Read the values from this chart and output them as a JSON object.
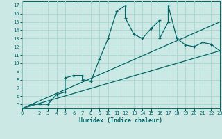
{
  "title": "",
  "xlabel": "Humidex (Indice chaleur)",
  "bg_color": "#cce8e4",
  "grid_color": "#a8d8d0",
  "line_color": "#006666",
  "xlim": [
    0,
    23
  ],
  "ylim": [
    4.5,
    17.5
  ],
  "xticks": [
    0,
    2,
    3,
    4,
    5,
    6,
    7,
    8,
    9,
    10,
    11,
    12,
    13,
    14,
    15,
    16,
    17,
    18,
    19,
    20,
    21,
    22,
    23
  ],
  "yticks": [
    5,
    6,
    7,
    8,
    9,
    10,
    11,
    12,
    13,
    14,
    15,
    16,
    17
  ],
  "data_line": [
    [
      1,
      5
    ],
    [
      2,
      5.0
    ],
    [
      3,
      5.0
    ],
    [
      4,
      6.2
    ],
    [
      5,
      6.5
    ],
    [
      5,
      8.2
    ],
    [
      6,
      8.5
    ],
    [
      6,
      8.5
    ],
    [
      7,
      8.5
    ],
    [
      7,
      8.0
    ],
    [
      8,
      7.8
    ],
    [
      9,
      10.5
    ],
    [
      10,
      13.0
    ],
    [
      11,
      16.3
    ],
    [
      12,
      17.0
    ],
    [
      12,
      15.5
    ],
    [
      13,
      13.5
    ],
    [
      14,
      13.0
    ],
    [
      15,
      14.2
    ],
    [
      16,
      15.2
    ],
    [
      16,
      13.0
    ],
    [
      17,
      15.0
    ],
    [
      17,
      17.0
    ],
    [
      18,
      13.0
    ],
    [
      19,
      12.2
    ],
    [
      20,
      12.0
    ],
    [
      21,
      12.5
    ],
    [
      22,
      12.3
    ],
    [
      23,
      11.5
    ]
  ],
  "ref_line1": [
    [
      0,
      4.5
    ],
    [
      23,
      11.5
    ]
  ],
  "ref_line2": [
    [
      0,
      4.5
    ],
    [
      23,
      15.0
    ]
  ]
}
